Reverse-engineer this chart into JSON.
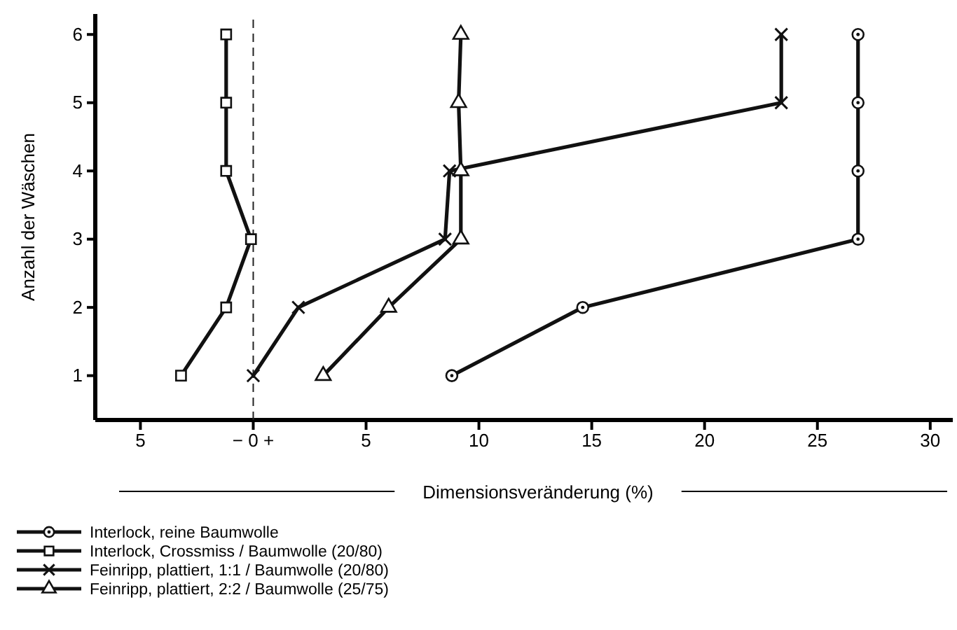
{
  "chart_data": {
    "type": "line",
    "xlabel": "Dimensionsveränderung (%)",
    "ylabel": "Anzahl der Wäschen",
    "xlim": [
      -7,
      31
    ],
    "ylim": [
      0.35,
      6.3
    ],
    "xticks": [
      {
        "value": -5,
        "label": "5"
      },
      {
        "value": 0,
        "label": "− 0 +"
      },
      5,
      10,
      15,
      20,
      25,
      30
    ],
    "yticks": [
      1,
      2,
      3,
      4,
      5,
      6
    ],
    "ref_lines": [
      {
        "axis": "x",
        "value": 0,
        "line_style": "dashed",
        "color": "#222222"
      }
    ],
    "legend": "bottom",
    "grid": false,
    "line_style": "solid",
    "series": [
      {
        "name": "Interlock, reine Baumwolle",
        "color": "#111111",
        "marker": "circle",
        "x": [
          8.8,
          14.6,
          26.8,
          26.8,
          26.8,
          26.8
        ],
        "values": [
          1,
          2,
          3,
          4,
          5,
          6
        ]
      },
      {
        "name": "Interlock, Crossmiss / Baumwolle (20/80)",
        "color": "#111111",
        "marker": "square",
        "x": [
          -3.2,
          -1.2,
          -0.1,
          -1.2,
          -1.2,
          -1.2
        ],
        "values": [
          1,
          2,
          3,
          4,
          5,
          6
        ]
      },
      {
        "name": "Feinripp, plattiert, 1:1 / Baumwolle (20/80)",
        "color": "#111111",
        "marker": "cross",
        "x": [
          0,
          2.0,
          8.5,
          8.7,
          23.4,
          23.4
        ],
        "values": [
          1,
          2,
          3,
          4,
          5,
          6
        ]
      },
      {
        "name": "Feinripp, plattiert, 2:2 / Baumwolle (25/75)",
        "color": "#111111",
        "marker": "triangle",
        "x": [
          3.1,
          6.0,
          9.2,
          9.2,
          9.1,
          9.2
        ],
        "values": [
          1,
          2,
          3,
          4,
          5,
          6
        ]
      }
    ]
  }
}
